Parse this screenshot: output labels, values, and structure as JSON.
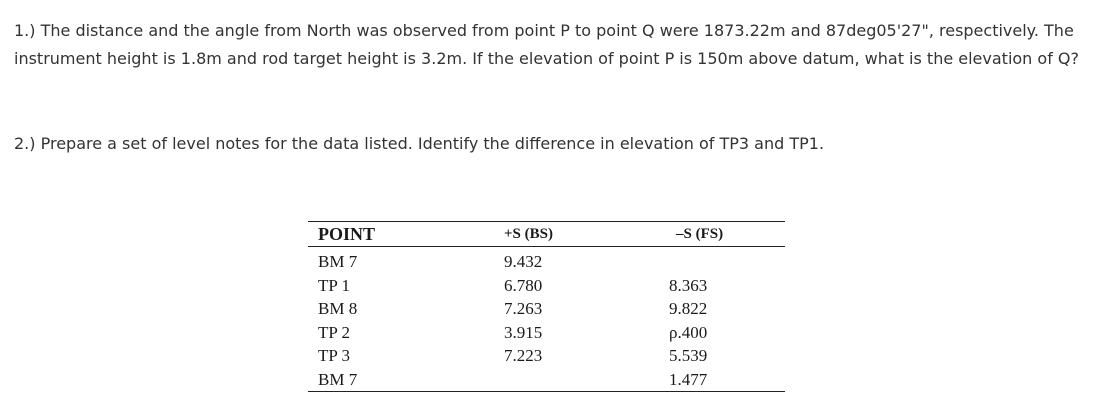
{
  "question1": "1.) The distance and the angle from North was observed from point P to point Q were 1873.22m and 87deg05'27\", respectively. The instrument height is 1.8m and rod target height is 3.2m. If the elevation of point P is 150m above datum, what is the elevation of Q?",
  "question2": "2.) Prepare a set of level notes for the data listed. Identify the difference in elevation of TP3 and TP1.",
  "table": {
    "headers": [
      "POINT",
      "+S (BS)",
      "–S (FS)"
    ],
    "rows": [
      [
        "BM 7",
        "9.432",
        ""
      ],
      [
        "TP 1",
        "6.780",
        "8.363"
      ],
      [
        "BM 8",
        "7.263",
        "9.822"
      ],
      [
        "TP 2",
        "3.915",
        "ρ.400"
      ],
      [
        "TP 3",
        "7.223",
        "5.539"
      ],
      [
        "BM 7",
        "",
        "1.477"
      ]
    ]
  }
}
